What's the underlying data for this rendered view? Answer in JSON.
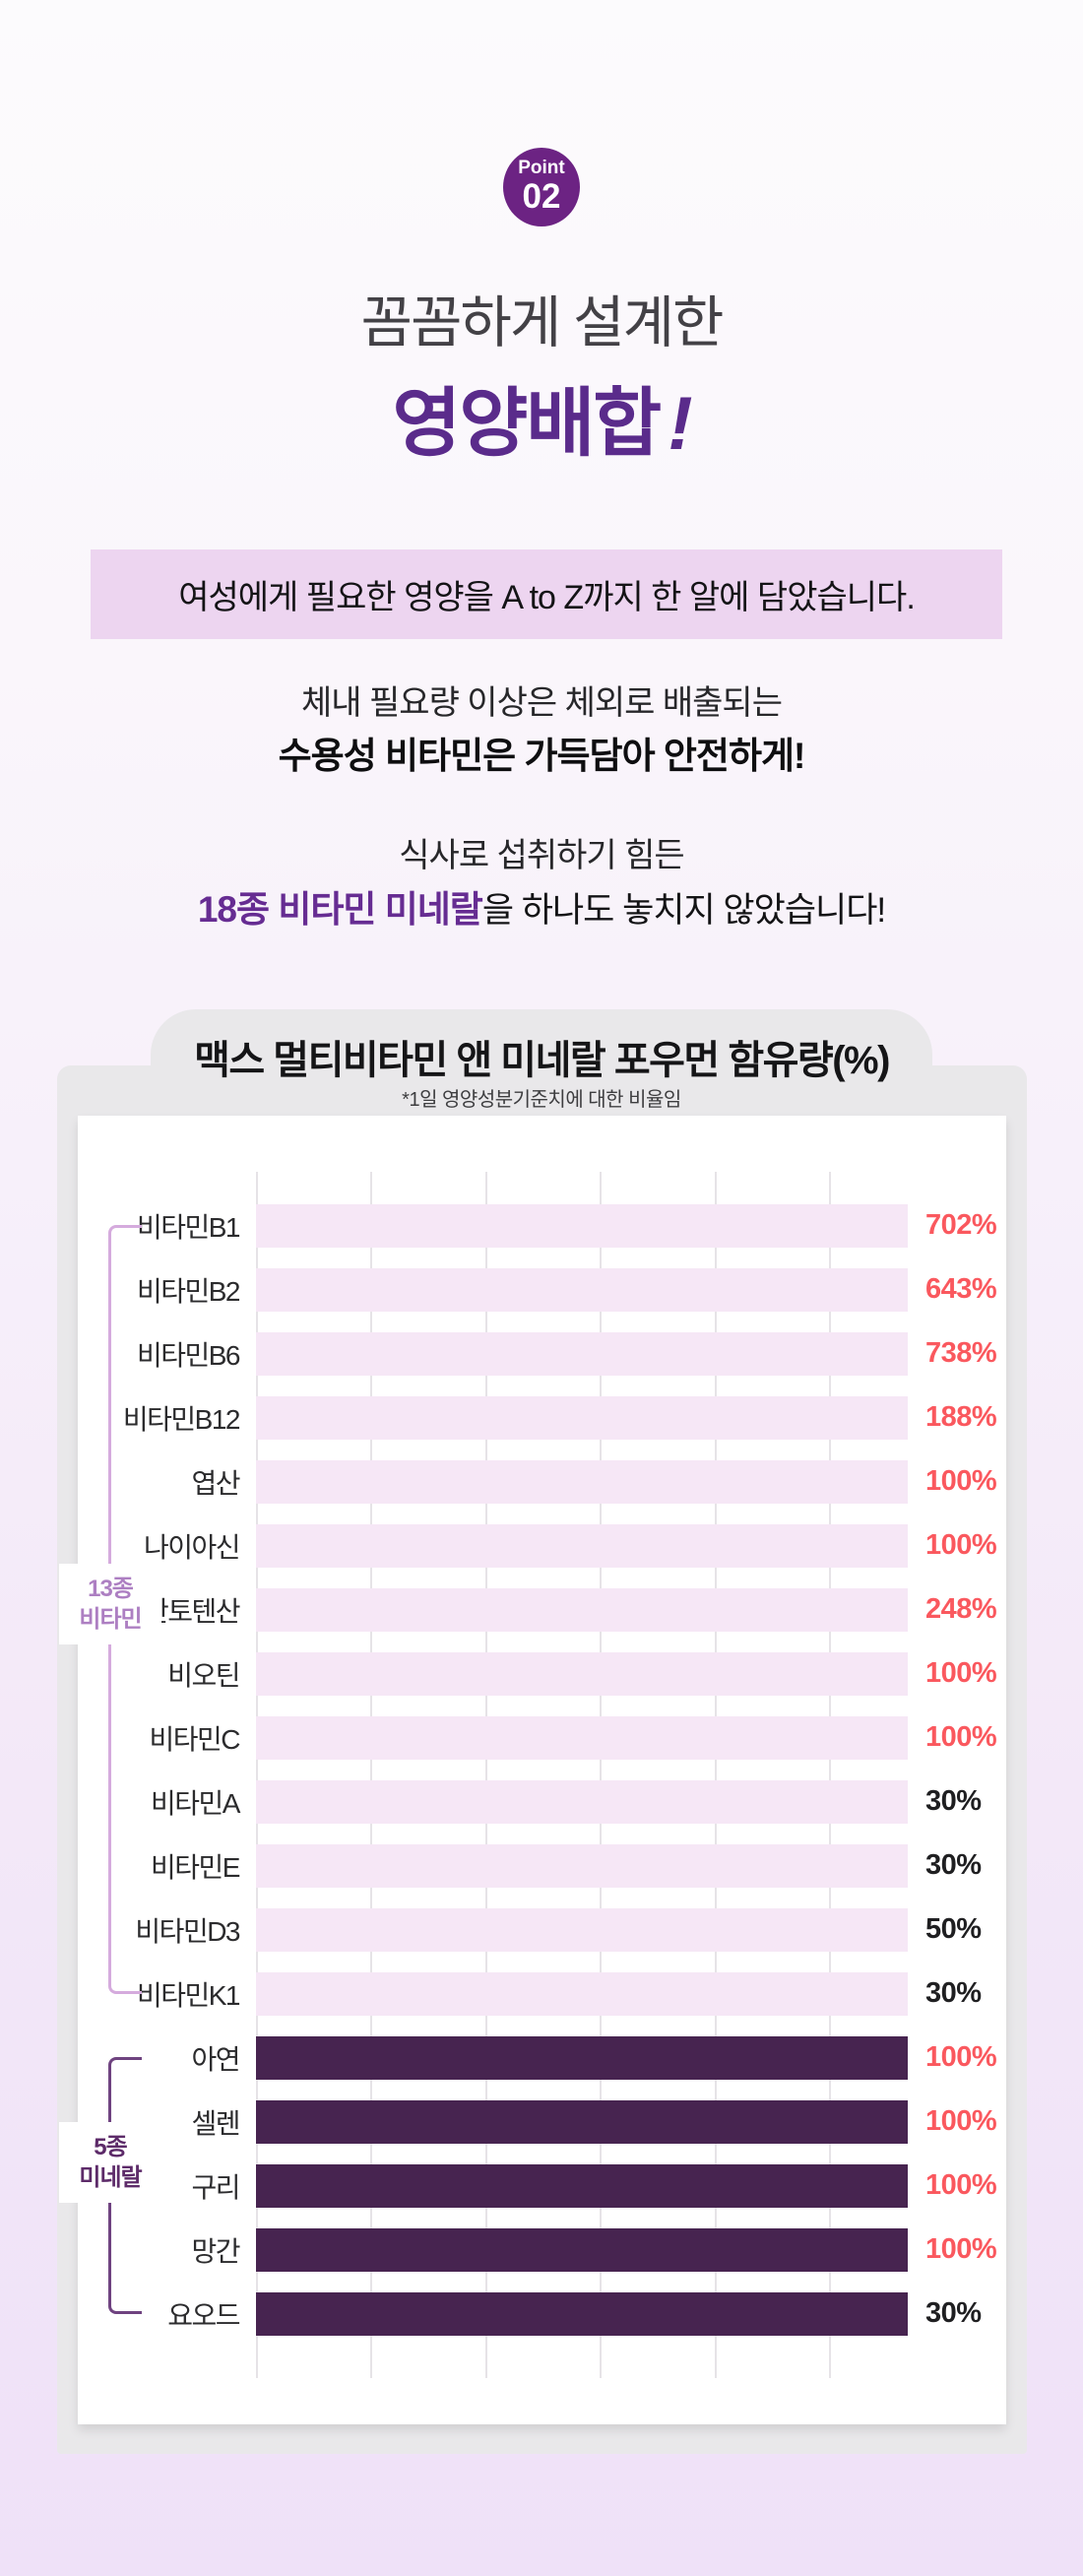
{
  "badge": {
    "label": "Point",
    "number": "02"
  },
  "heading": {
    "line1": "꼼꼼하게 설계한",
    "line2": "영양배합",
    "exclaim": "!"
  },
  "highlight_box": {
    "text": "여성에게 필요한 영양을 A to Z까지 한 알에 담았습니다."
  },
  "intro": {
    "line1": "체내 필요량 이상은 체외로 배출되는",
    "line2": "수용성 비타민은 가득담아 안전하게!"
  },
  "second": {
    "line1": "식사로 섭취하기 힘든",
    "line2_highlight": "18종 비타민 미네랄",
    "line2_rest": "을 하나도 놓치지 않았습니다!"
  },
  "chart_card": {
    "title": "맥스 멀티비타민 앤 미네랄 포우먼 함유량(%)",
    "subtitle": "*1일 영양성분기준치에 대한 비율임"
  },
  "chart_data": {
    "type": "bar",
    "orientation": "horizontal",
    "title": "맥스 멀티비타민 앤 미네랄 포우먼 함유량(%)",
    "note": "*1일 영양성분기준치에 대한 비율임",
    "unit": "%",
    "grid": true,
    "bars_decorative_full_width": true,
    "value_label_position": "right",
    "colors": {
      "vitamin_bar": "#f6e7f6",
      "mineral_bar": "#472450",
      "value_red": "#fa585e",
      "value_black": "#1f1f21",
      "accent_purple": "#5a2b8b",
      "badge_purple": "#6c2383"
    },
    "groups": [
      {
        "name": "13종 비타민",
        "label_lines": [
          "13종",
          "비타민"
        ],
        "bar_style": "light",
        "items": [
          {
            "label": "비타민B1",
            "value": 702,
            "display": "702%",
            "value_color": "red"
          },
          {
            "label": "비타민B2",
            "value": 643,
            "display": "643%",
            "value_color": "red"
          },
          {
            "label": "비타민B6",
            "value": 738,
            "display": "738%",
            "value_color": "red"
          },
          {
            "label": "비타민B12",
            "value": 188,
            "display": "188%",
            "value_color": "red"
          },
          {
            "label": "엽산",
            "value": 100,
            "display": "100%",
            "value_color": "red"
          },
          {
            "label": "나이아신",
            "value": 100,
            "display": "100%",
            "value_color": "red"
          },
          {
            "label": "판토텐산",
            "value": 248,
            "display": "248%",
            "value_color": "red"
          },
          {
            "label": "비오틴",
            "value": 100,
            "display": "100%",
            "value_color": "red"
          },
          {
            "label": "비타민C",
            "value": 100,
            "display": "100%",
            "value_color": "red"
          },
          {
            "label": "비타민A",
            "value": 30,
            "display": "30%",
            "value_color": "black"
          },
          {
            "label": "비타민E",
            "value": 30,
            "display": "30%",
            "value_color": "black"
          },
          {
            "label": "비타민D3",
            "value": 50,
            "display": "50%",
            "value_color": "black"
          },
          {
            "label": "비타민K1",
            "value": 30,
            "display": "30%",
            "value_color": "black"
          }
        ]
      },
      {
        "name": "5종 미네랄",
        "label_lines": [
          "5종",
          "미네랄"
        ],
        "bar_style": "dark",
        "items": [
          {
            "label": "아연",
            "value": 100,
            "display": "100%",
            "value_color": "red"
          },
          {
            "label": "셀렌",
            "value": 100,
            "display": "100%",
            "value_color": "red"
          },
          {
            "label": "구리",
            "value": 100,
            "display": "100%",
            "value_color": "red"
          },
          {
            "label": "망간",
            "value": 100,
            "display": "100%",
            "value_color": "red"
          },
          {
            "label": "요오드",
            "value": 30,
            "display": "30%",
            "value_color": "black"
          }
        ]
      }
    ]
  }
}
